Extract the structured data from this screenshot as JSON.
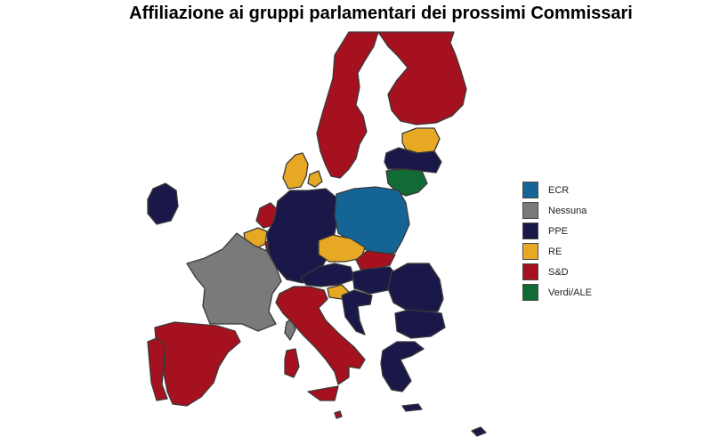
{
  "title": "Affiliazione ai gruppi parlamentari dei prossimi Commissari",
  "colors": {
    "ECR": "#156496",
    "Nessuna": "#7a7a7a",
    "PPE": "#1a1749",
    "RE": "#e7a924",
    "S&D": "#a5111e",
    "Verdi/ALE": "#106b34"
  },
  "legend": [
    {
      "label": "ECR",
      "color": "#156496"
    },
    {
      "label": "Nessuna",
      "color": "#7a7a7a"
    },
    {
      "label": "PPE",
      "color": "#1a1749"
    },
    {
      "label": "RE",
      "color": "#e7a924"
    },
    {
      "label": "S&D",
      "color": "#a5111e"
    },
    {
      "label": "Verdi/ALE",
      "color": "#106b34"
    }
  ],
  "countries": [
    {
      "name": "Sweden",
      "group": "S&D"
    },
    {
      "name": "Finland",
      "group": "S&D"
    },
    {
      "name": "Denmark",
      "group": "RE"
    },
    {
      "name": "Estonia",
      "group": "RE"
    },
    {
      "name": "Latvia",
      "group": "PPE"
    },
    {
      "name": "Lithuania",
      "group": "Verdi/ALE"
    },
    {
      "name": "Ireland",
      "group": "PPE"
    },
    {
      "name": "Netherlands",
      "group": "S&D"
    },
    {
      "name": "Belgium",
      "group": "RE"
    },
    {
      "name": "Luxembourg",
      "group": "S&D"
    },
    {
      "name": "Germany",
      "group": "PPE"
    },
    {
      "name": "Poland",
      "group": "ECR"
    },
    {
      "name": "Czechia",
      "group": "RE"
    },
    {
      "name": "Slovakia",
      "group": "S&D"
    },
    {
      "name": "Austria",
      "group": "PPE"
    },
    {
      "name": "Hungary",
      "group": "PPE"
    },
    {
      "name": "Slovenia",
      "group": "RE"
    },
    {
      "name": "Croatia",
      "group": "PPE"
    },
    {
      "name": "Romania",
      "group": "PPE"
    },
    {
      "name": "Bulgaria",
      "group": "PPE"
    },
    {
      "name": "Greece",
      "group": "PPE"
    },
    {
      "name": "Cyprus",
      "group": "PPE"
    },
    {
      "name": "France",
      "group": "Nessuna"
    },
    {
      "name": "Italy",
      "group": "S&D"
    },
    {
      "name": "Malta",
      "group": "S&D"
    },
    {
      "name": "Spain",
      "group": "S&D"
    },
    {
      "name": "Portugal",
      "group": "S&D"
    }
  ]
}
